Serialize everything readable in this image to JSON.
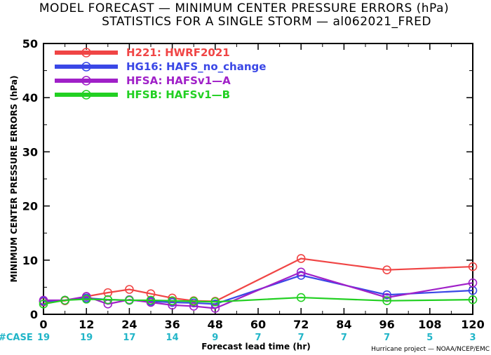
{
  "chart_data": {
    "type": "line",
    "title": "MODEL FORECAST — MINIMUM CENTER PRESSURE ERRORS (hPa)",
    "subtitle": "STATISTICS FOR A SINGLE STORM — al062021_FRED",
    "xlabel": "Forecast lead time (hr)",
    "ylabel": "MINIMUM CENTER PRESSURE ERRORS (hPa)",
    "xlim": [
      0,
      120
    ],
    "ylim": [
      0,
      50
    ],
    "x_ticks": [
      "0",
      "12",
      "24",
      "36",
      "48",
      "60",
      "72",
      "84",
      "96",
      "108",
      "120"
    ],
    "y_ticks": [
      "0",
      "10",
      "20",
      "30",
      "40",
      "50"
    ],
    "grid": false,
    "legend_position": "top-left",
    "case_label": "#CASE",
    "case_counts": [
      "19",
      "19",
      "17",
      "14",
      "9",
      "7",
      "7",
      "7",
      "7",
      "5",
      "3"
    ],
    "credit": "Hurricane project — NOAA/NCEP/EMC",
    "series": [
      {
        "name": "H221:  HWRF2021",
        "color": "#f04545",
        "points": [
          [
            0,
            2.3
          ],
          [
            6,
            2.5
          ],
          [
            12,
            3.3
          ],
          [
            18,
            4.0
          ],
          [
            24,
            4.6
          ],
          [
            30,
            3.8
          ],
          [
            36,
            3.0
          ],
          [
            42,
            2.5
          ],
          [
            48,
            2.4
          ],
          [
            72,
            10.3
          ],
          [
            96,
            8.2
          ],
          [
            120,
            8.8
          ]
        ]
      },
      {
        "name": "HG16:  HAFS_no_change",
        "color": "#3a47e6",
        "points": [
          [
            0,
            2.4
          ],
          [
            6,
            2.6
          ],
          [
            12,
            3.0
          ],
          [
            18,
            2.7
          ],
          [
            24,
            2.6
          ],
          [
            30,
            2.4
          ],
          [
            36,
            2.2
          ],
          [
            42,
            2.1
          ],
          [
            48,
            1.9
          ],
          [
            72,
            7.2
          ],
          [
            96,
            3.6
          ],
          [
            120,
            4.4
          ]
        ]
      },
      {
        "name": "HFSA:  HAFSv1—A",
        "color": "#a020c8",
        "points": [
          [
            0,
            2.6
          ],
          [
            6,
            2.6
          ],
          [
            12,
            3.3
          ],
          [
            18,
            1.9
          ],
          [
            24,
            2.7
          ],
          [
            30,
            2.2
          ],
          [
            36,
            1.7
          ],
          [
            42,
            1.5
          ],
          [
            48,
            1.1
          ],
          [
            72,
            7.8
          ],
          [
            96,
            3.1
          ],
          [
            120,
            5.8
          ]
        ]
      },
      {
        "name": "HFSB:  HAFSv1—B",
        "color": "#22d022",
        "points": [
          [
            0,
            1.9
          ],
          [
            6,
            2.6
          ],
          [
            12,
            2.8
          ],
          [
            18,
            2.7
          ],
          [
            24,
            2.6
          ],
          [
            30,
            2.6
          ],
          [
            36,
            2.5
          ],
          [
            42,
            2.4
          ],
          [
            48,
            2.3
          ],
          [
            72,
            3.1
          ],
          [
            96,
            2.5
          ],
          [
            120,
            2.7
          ]
        ]
      }
    ]
  }
}
